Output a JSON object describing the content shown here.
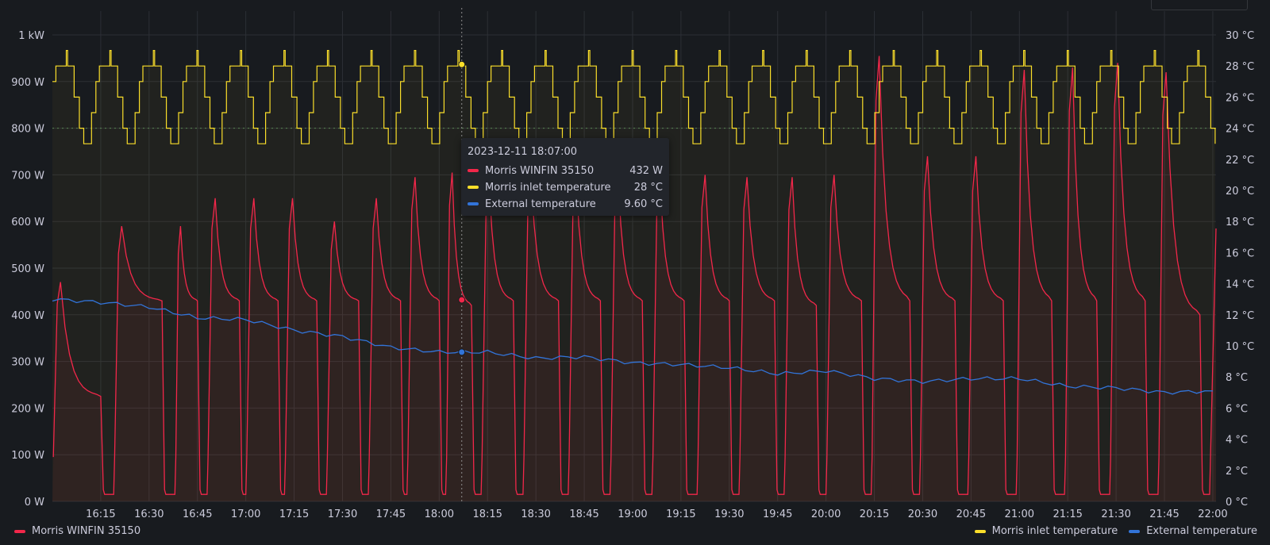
{
  "colors": {
    "power": "#f2274a",
    "inlet": "#fade2a",
    "external": "#3274d9",
    "grid": "#2c2f35",
    "text": "#ccccdc"
  },
  "legend": {
    "left": [
      {
        "name": "Morris WINFIN 35150",
        "color": "#f2274a"
      }
    ],
    "right": [
      {
        "name": "Morris inlet temperature",
        "color": "#fade2a"
      },
      {
        "name": "External temperature",
        "color": "#3274d9"
      }
    ]
  },
  "tooltip": {
    "time": "2023-12-11 18:07:00",
    "rows": [
      {
        "name": "Morris WINFIN 35150",
        "value": "432 W",
        "color": "#f2274a"
      },
      {
        "name": "Morris inlet temperature",
        "value": "28 °C",
        "color": "#fade2a"
      },
      {
        "name": "External temperature",
        "value": "9.60 °C",
        "color": "#3274d9"
      }
    ]
  },
  "chart_data": {
    "type": "line",
    "x_range": [
      "16:00",
      "22:01"
    ],
    "x_ticks": [
      "16:15",
      "16:30",
      "16:45",
      "17:00",
      "17:15",
      "17:30",
      "17:45",
      "18:00",
      "18:15",
      "18:30",
      "18:45",
      "19:00",
      "19:15",
      "19:30",
      "19:45",
      "20:00",
      "20:15",
      "20:30",
      "20:45",
      "21:00",
      "21:15",
      "21:30",
      "21:45",
      "22:00"
    ],
    "y_left": {
      "unit": "W",
      "range": [
        0,
        1000
      ],
      "ticks": [
        "0 W",
        "100 W",
        "200 W",
        "300 W",
        "400 W",
        "500 W",
        "600 W",
        "700 W",
        "800 W",
        "900 W",
        "1 kW"
      ]
    },
    "y_right": {
      "unit": "°C",
      "range": [
        0,
        30
      ],
      "ticks": [
        "0 °C",
        "2 °C",
        "4 °C",
        "6 °C",
        "8 °C",
        "10 °C",
        "12 °C",
        "14 °C",
        "16 °C",
        "18 °C",
        "20 °C",
        "22 °C",
        "24 °C",
        "26 °C",
        "28 °C",
        "30 °C"
      ]
    },
    "threshold_w": 800,
    "hover_time": "18:07",
    "series": [
      {
        "name": "Morris WINFIN 35150",
        "axis": "left",
        "cycles": [
          {
            "on": "16:00",
            "off": "16:15",
            "peak": 470,
            "settle": 225
          },
          {
            "on": "16:19",
            "off": "16:34",
            "peak": 590,
            "settle": 430
          },
          {
            "on": "16:38",
            "off": "16:45",
            "peak": 590,
            "settle": 430
          },
          {
            "on": "16:48",
            "off": "16:58",
            "peak": 650,
            "settle": 430
          },
          {
            "on": "17:00",
            "off": "17:10",
            "peak": 650,
            "settle": 430
          },
          {
            "on": "17:12",
            "off": "17:22",
            "peak": 650,
            "settle": 430
          },
          {
            "on": "17:25",
            "off": "17:35",
            "peak": 600,
            "settle": 430
          },
          {
            "on": "17:38",
            "off": "17:48",
            "peak": 650,
            "settle": 430
          },
          {
            "on": "17:50",
            "off": "18:00",
            "peak": 695,
            "settle": 430
          },
          {
            "on": "18:02",
            "off": "18:10",
            "peak": 705,
            "settle": 420
          },
          {
            "on": "18:13",
            "off": "18:23",
            "peak": 680,
            "settle": 430
          },
          {
            "on": "18:26",
            "off": "18:37",
            "peak": 700,
            "settle": 430
          },
          {
            "on": "18:40",
            "off": "18:50",
            "peak": 695,
            "settle": 430
          },
          {
            "on": "18:53",
            "off": "19:03",
            "peak": 700,
            "settle": 430
          },
          {
            "on": "19:06",
            "off": "19:16",
            "peak": 690,
            "settle": 430
          },
          {
            "on": "19:20",
            "off": "19:30",
            "peak": 700,
            "settle": 430
          },
          {
            "on": "19:33",
            "off": "19:44",
            "peak": 695,
            "settle": 430
          },
          {
            "on": "19:47",
            "off": "19:57",
            "peak": 695,
            "settle": 420
          },
          {
            "on": "20:00",
            "off": "20:11",
            "peak": 700,
            "settle": 430
          },
          {
            "on": "20:14",
            "off": "20:26",
            "peak": 955,
            "settle": 430
          },
          {
            "on": "20:29",
            "off": "20:40",
            "peak": 740,
            "settle": 430
          },
          {
            "on": "20:44",
            "off": "20:55",
            "peak": 740,
            "settle": 430
          },
          {
            "on": "20:59",
            "off": "21:10",
            "peak": 925,
            "settle": 430
          },
          {
            "on": "21:14",
            "off": "21:24",
            "peak": 930,
            "settle": 430
          },
          {
            "on": "21:28",
            "off": "21:39",
            "peak": 940,
            "settle": 430
          },
          {
            "on": "21:43",
            "off": "21:56",
            "peak": 920,
            "settle": 400
          },
          {
            "on": "21:59",
            "off": "22:01",
            "peak": 585,
            "settle": 585
          }
        ],
        "off_value": 15
      },
      {
        "name": "Morris inlet temperature",
        "axis": "right",
        "pattern": "step oscillation between 23 °C and 28 °C with short spikes to 29 °C",
        "min": 23,
        "max": 29,
        "period_minutes": 13.5
      },
      {
        "name": "External temperature",
        "axis": "right",
        "points": [
          [
            "16:00",
            13.0
          ],
          [
            "16:15",
            12.8
          ],
          [
            "16:30",
            12.5
          ],
          [
            "16:45",
            11.8
          ],
          [
            "17:00",
            11.7
          ],
          [
            "17:15",
            11.0
          ],
          [
            "17:30",
            10.6
          ],
          [
            "17:45",
            9.9
          ],
          [
            "18:00",
            9.6
          ],
          [
            "18:15",
            9.6
          ],
          [
            "18:30",
            9.2
          ],
          [
            "18:45",
            9.3
          ],
          [
            "19:00",
            8.9
          ],
          [
            "19:15",
            8.8
          ],
          [
            "19:30",
            8.6
          ],
          [
            "19:45",
            8.2
          ],
          [
            "20:00",
            8.4
          ],
          [
            "20:15",
            7.9
          ],
          [
            "20:30",
            7.7
          ],
          [
            "20:45",
            7.9
          ],
          [
            "21:00",
            7.9
          ],
          [
            "21:15",
            7.4
          ],
          [
            "21:30",
            7.3
          ],
          [
            "21:45",
            7.0
          ],
          [
            "22:00",
            7.1
          ]
        ]
      }
    ]
  }
}
